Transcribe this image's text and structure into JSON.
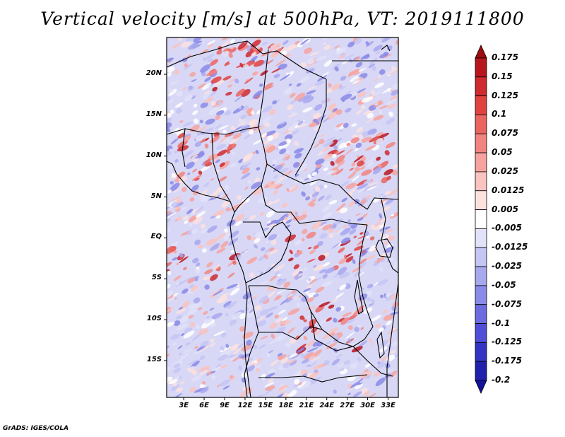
{
  "title": "Vertical velocity [m/s] at 500hPa, VT: 2019111800",
  "credit": "GrADS: IGES/COLA",
  "latitude_labels": [
    "20N",
    "15N",
    "10N",
    "5N",
    "EQ",
    "5S",
    "10S",
    "15S"
  ],
  "latitude_values": [
    20,
    15,
    10,
    5,
    0,
    -5,
    -10,
    -15
  ],
  "longitude_labels": [
    "3E",
    "6E",
    "9E",
    "12E",
    "15E",
    "18E",
    "21E",
    "24E",
    "27E",
    "30E",
    "33E"
  ],
  "longitude_values": [
    3,
    6,
    9,
    12,
    15,
    18,
    21,
    24,
    27,
    30,
    33
  ],
  "map_extent": {
    "lon_min": 0.5,
    "lon_max": 34.5,
    "lat_min": -19.5,
    "lat_max": 24.5
  },
  "colorbar": {
    "labels": [
      "0.175",
      "0.15",
      "0.125",
      "0.1",
      "0.075",
      "0.05",
      "0.025",
      "0.0125",
      "0.005",
      "-0.005",
      "-0.0125",
      "-0.025",
      "-0.05",
      "-0.075",
      "-0.1",
      "-0.125",
      "-0.175",
      "-0.2"
    ],
    "colors": [
      "#9e0e10",
      "#b8161e",
      "#cf2a2f",
      "#e0433f",
      "#ea6560",
      "#f18480",
      "#f6a39f",
      "#f9c3bf",
      "#fce2df",
      "#ffffff",
      "#e2e2f8",
      "#c6c6f4",
      "#a8a8ee",
      "#8a8ae8",
      "#6c6ce0",
      "#4e4ed6",
      "#3333c4",
      "#2020ad",
      "#12129a"
    ]
  }
}
